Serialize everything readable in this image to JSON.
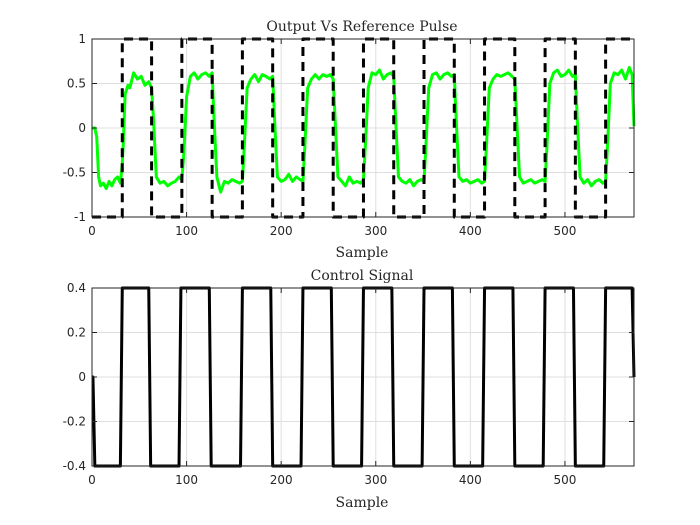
{
  "chart_data": [
    {
      "type": "line",
      "title": "Output Vs Reference Pulse",
      "xlabel": "Sample",
      "ylabel": "",
      "xlim": [
        0,
        573
      ],
      "ylim": [
        -1,
        1
      ],
      "xticks": [
        0,
        100,
        200,
        300,
        400,
        500
      ],
      "yticks": [
        -1,
        -0.5,
        0,
        0.5,
        1
      ],
      "xtick_labels": [
        "0",
        "100",
        "200",
        "300",
        "400",
        "500"
      ],
      "ytick_labels": [
        "-1",
        "-0.5",
        "0",
        "0.5",
        "1"
      ],
      "grid": true,
      "legend": "none",
      "series": [
        {
          "color": "#00ff00",
          "style": "solid",
          "x": [
            0,
            3,
            5,
            7,
            9,
            12,
            15,
            18,
            21,
            24,
            27,
            30,
            32,
            33,
            35,
            38,
            40,
            44,
            48,
            52,
            56,
            60,
            63,
            65,
            68,
            72,
            76,
            80,
            84,
            88,
            92,
            95,
            97,
            100,
            104,
            108,
            112,
            116,
            120,
            124,
            127,
            129,
            132,
            136,
            140,
            144,
            148,
            152,
            156,
            159,
            161,
            164,
            168,
            172,
            176,
            180,
            184,
            188,
            191,
            193,
            196,
            200,
            204,
            208,
            212,
            216,
            220,
            223,
            225,
            228,
            232,
            236,
            240,
            244,
            248,
            252,
            255,
            257,
            260,
            264,
            268,
            272,
            276,
            280,
            284,
            287,
            289,
            292,
            296,
            300,
            304,
            308,
            312,
            316,
            319,
            321,
            324,
            328,
            332,
            336,
            340,
            344,
            348,
            351,
            353,
            356,
            360,
            364,
            368,
            372,
            376,
            380,
            383,
            385,
            388,
            392,
            396,
            400,
            404,
            408,
            412,
            415,
            417,
            420,
            424,
            428,
            432,
            436,
            440,
            444,
            447,
            449,
            452,
            456,
            460,
            464,
            468,
            472,
            476,
            479,
            481,
            484,
            488,
            492,
            496,
            500,
            504,
            508,
            511,
            513,
            516,
            520,
            524,
            528,
            532,
            536,
            540,
            543,
            545,
            548,
            552,
            556,
            560,
            564,
            568,
            571,
            573
          ],
          "y": [
            0,
            0,
            -0.1,
            -0.55,
            -0.65,
            -0.62,
            -0.68,
            -0.6,
            -0.65,
            -0.58,
            -0.55,
            -0.62,
            -0.4,
            -0.2,
            0.38,
            0.48,
            0.45,
            0.62,
            0.55,
            0.58,
            0.48,
            0.52,
            0.45,
            0.1,
            -0.55,
            -0.62,
            -0.6,
            -0.65,
            -0.62,
            -0.6,
            -0.55,
            -0.58,
            -0.3,
            0.35,
            0.58,
            0.62,
            0.55,
            0.6,
            0.62,
            0.58,
            0.62,
            0.1,
            -0.55,
            -0.72,
            -0.6,
            -0.62,
            -0.58,
            -0.6,
            -0.62,
            -0.6,
            -0.2,
            0.45,
            0.55,
            0.6,
            0.52,
            0.6,
            0.58,
            0.55,
            0.58,
            0.1,
            -0.55,
            -0.6,
            -0.58,
            -0.52,
            -0.6,
            -0.55,
            -0.58,
            -0.6,
            -0.2,
            0.45,
            0.55,
            0.6,
            0.55,
            0.6,
            0.58,
            0.6,
            0.55,
            0.1,
            -0.55,
            -0.6,
            -0.65,
            -0.55,
            -0.62,
            -0.6,
            -0.62,
            -0.58,
            -0.2,
            0.45,
            0.62,
            0.6,
            0.65,
            0.55,
            0.6,
            0.62,
            0.58,
            0.1,
            -0.55,
            -0.6,
            -0.62,
            -0.58,
            -0.65,
            -0.6,
            -0.58,
            -0.6,
            -0.2,
            0.45,
            0.6,
            0.62,
            0.55,
            0.6,
            0.62,
            0.58,
            0.6,
            0.1,
            -0.55,
            -0.6,
            -0.58,
            -0.62,
            -0.6,
            -0.58,
            -0.62,
            -0.6,
            -0.2,
            0.45,
            0.55,
            0.6,
            0.58,
            0.6,
            0.62,
            0.58,
            0.55,
            0.1,
            -0.55,
            -0.62,
            -0.6,
            -0.58,
            -0.62,
            -0.6,
            -0.58,
            -0.6,
            -0.2,
            0.5,
            0.62,
            0.65,
            0.58,
            0.6,
            0.65,
            0.58,
            0.6,
            0.1,
            -0.55,
            -0.62,
            -0.58,
            -0.65,
            -0.6,
            -0.58,
            -0.62,
            -0.6,
            -0.2,
            0.5,
            0.62,
            0.6,
            0.65,
            0.55,
            0.68,
            0.6,
            0.02
          ]
        },
        {
          "color": "#000000",
          "style": "dashed",
          "x": [
            0,
            32,
            32,
            63,
            63,
            95,
            95,
            127,
            127,
            159,
            159,
            191,
            191,
            223,
            223,
            255,
            255,
            287,
            287,
            319,
            319,
            351,
            351,
            383,
            383,
            415,
            415,
            447,
            447,
            479,
            479,
            511,
            511,
            543,
            543,
            573
          ],
          "y": [
            -1,
            -1,
            1,
            1,
            -1,
            -1,
            1,
            1,
            -1,
            -1,
            1,
            1,
            -1,
            -1,
            1,
            1,
            -1,
            -1,
            1,
            1,
            -1,
            -1,
            1,
            1,
            -1,
            -1,
            1,
            1,
            -1,
            -1,
            1,
            1,
            -1,
            -1,
            1,
            1
          ]
        }
      ]
    },
    {
      "type": "line",
      "title": "Control Signal",
      "xlabel": "Sample",
      "ylabel": "",
      "xlim": [
        0,
        573
      ],
      "ylim": [
        -0.4,
        0.4
      ],
      "xticks": [
        0,
        100,
        200,
        300,
        400,
        500
      ],
      "yticks": [
        -0.4,
        -0.2,
        0,
        0.2,
        0.4
      ],
      "xtick_labels": [
        "0",
        "100",
        "200",
        "300",
        "400",
        "500"
      ],
      "ytick_labels": [
        "-0.4",
        "-0.2",
        "0",
        "0.2",
        "0.4"
      ],
      "grid": true,
      "legend": "none",
      "series": [
        {
          "color": "#000000",
          "style": "solid",
          "x": [
            0,
            1,
            3,
            30,
            32,
            60,
            62,
            92,
            94,
            124,
            126,
            157,
            159,
            189,
            191,
            221,
            223,
            253,
            255,
            285,
            287,
            317,
            319,
            349,
            351,
            381,
            383,
            413,
            415,
            445,
            447,
            477,
            479,
            509,
            511,
            541,
            543,
            571,
            573
          ],
          "y": [
            0,
            0,
            -0.4,
            -0.4,
            0.4,
            0.4,
            -0.4,
            -0.4,
            0.4,
            0.4,
            -0.4,
            -0.4,
            0.4,
            0.4,
            -0.4,
            -0.4,
            0.4,
            0.4,
            -0.4,
            -0.4,
            0.4,
            0.4,
            -0.4,
            -0.4,
            0.4,
            0.4,
            -0.4,
            -0.4,
            0.4,
            0.4,
            -0.4,
            -0.4,
            0.4,
            0.4,
            -0.4,
            -0.4,
            0.4,
            0.4,
            0
          ]
        }
      ]
    }
  ]
}
